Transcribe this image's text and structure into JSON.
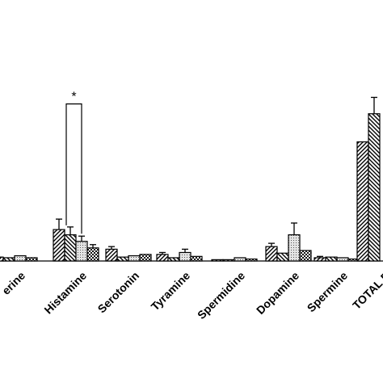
{
  "chart_data": {
    "type": "bar",
    "title": "",
    "xlabel": "",
    "ylabel": "",
    "ylim": [
      0,
      300
    ],
    "grid": false,
    "legend": "none",
    "categories": [
      "Putrescine / Cadaverine",
      "Histamine",
      "Serotonin",
      "Tyramine",
      "Spermidine",
      "Dopamine",
      "Spermine",
      "TOTAL BA"
    ],
    "tick_labels": [
      "erine",
      "Histamine",
      "Serotonin",
      "Tyramine",
      "Spermidine",
      "Dopamine",
      "Spermine",
      "TOTAL B"
    ],
    "series": [
      {
        "pattern": "diagonal-right",
        "values": [
          6,
          48,
          18,
          10,
          2,
          22,
          5,
          182
        ],
        "errors": [
          0,
          16,
          4,
          3,
          0,
          5,
          2,
          0
        ]
      },
      {
        "pattern": "diagonal-left",
        "values": [
          5,
          40,
          6,
          5,
          2,
          12,
          6,
          225
        ],
        "errors": [
          0,
          12,
          0,
          0,
          0,
          0,
          0,
          25
        ]
      },
      {
        "pattern": "dotted",
        "values": [
          8,
          30,
          8,
          13,
          5,
          40,
          5,
          0
        ],
        "errors": [
          0,
          8,
          0,
          5,
          0,
          18,
          0,
          0
        ]
      },
      {
        "pattern": "checkered",
        "values": [
          5,
          20,
          10,
          7,
          3,
          16,
          3,
          0
        ],
        "errors": [
          0,
          5,
          0,
          0,
          0,
          0,
          0,
          0
        ]
      }
    ],
    "annotations": [
      {
        "text": "*",
        "category": "Histamine",
        "series_from": 1,
        "series_to": 2,
        "bracket_top": 240
      }
    ]
  }
}
